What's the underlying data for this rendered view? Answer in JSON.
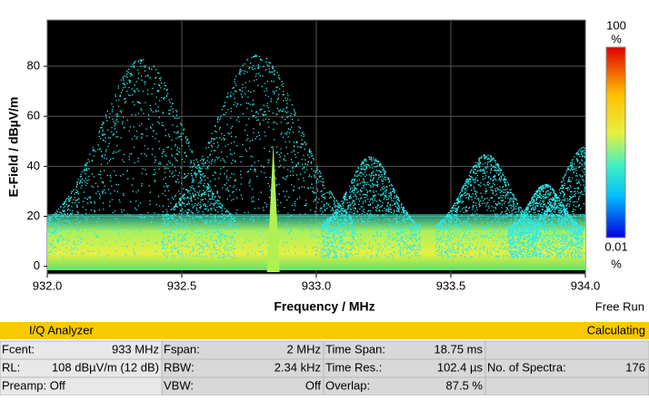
{
  "chart_data": {
    "type": "persistence",
    "xlabel": "Frequency / MHz",
    "ylabel": "E-Field / dBµV/m",
    "x": [
      932.35,
      932.78,
      933.2,
      933.63,
      933.85,
      934.0
    ],
    "values": [
      83,
      85,
      44,
      45,
      33,
      48
    ],
    "color": "#30e8e8",
    "carrier": {
      "x": 932.84,
      "value": 49,
      "color": "#b0f050"
    },
    "xlim": [
      932,
      934
    ],
    "ylim": [
      -3,
      98.5
    ],
    "xticks": [
      {
        "value": 932,
        "label": "932.0"
      },
      {
        "value": 932.5,
        "label": "932.5"
      },
      {
        "value": 933,
        "label": "933.0"
      },
      {
        "value": 933.5,
        "label": "933.5"
      },
      {
        "value": 934,
        "label": "934.0"
      }
    ],
    "yticks": [
      0,
      20,
      40,
      60,
      80
    ],
    "grid": true,
    "colorbar": {
      "top": "100",
      "top_unit": "%",
      "bottom": "0.01",
      "bottom_unit": "%"
    },
    "mode": "Free Run"
  },
  "status": {
    "title": "I/Q Analyzer",
    "state": "Calculating"
  },
  "settings": [
    [
      {
        "label": "Fcent:",
        "value": "933 MHz"
      },
      {
        "label": "Fspan:",
        "value": "2 MHz"
      },
      {
        "label": "Time Span:",
        "value": "18.75 ms"
      }
    ],
    [
      {
        "label": "RL:",
        "value": "108 dBµV/m (12 dB)"
      },
      {
        "label": "RBW:",
        "value": "2.34 kHz"
      },
      {
        "label": "Time Res.:",
        "value": "102.4 µs"
      },
      {
        "label": "No. of Spectra:",
        "value": "176"
      }
    ],
    [
      {
        "label": "Preamp: Off"
      },
      {
        "label": "VBW:",
        "value": "Off"
      },
      {
        "label": "Overlap:",
        "value": "87.5 %"
      }
    ]
  ]
}
